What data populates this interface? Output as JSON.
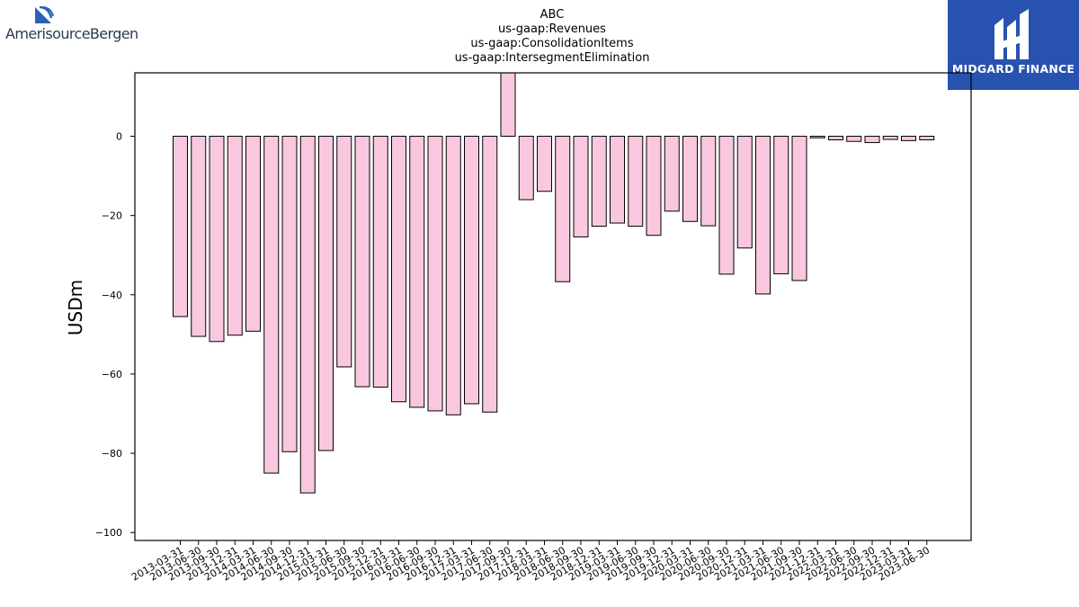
{
  "logos": {
    "left": {
      "text": "AmerisourceBergen",
      "icon": "amerisourcebergen-logo-icon"
    },
    "right": {
      "text": "MIDGARD FINANCE",
      "icon": "midgard-finance-logo-icon",
      "background": "#2752b0"
    }
  },
  "chart_data": {
    "type": "bar",
    "title": [
      "ABC",
      "us-gaap:Revenues",
      "us-gaap:ConsolidationItems",
      "us-gaap:IntersegmentElimination"
    ],
    "xlabel": "",
    "ylabel": "USDm",
    "ylim": [
      -102,
      16
    ],
    "yticks": [
      0,
      -20,
      -40,
      -60,
      -80,
      -100
    ],
    "ytick_labels": [
      "0",
      "−20",
      "−40",
      "−60",
      "−80",
      "−100"
    ],
    "bar_color": "#f9c8e0",
    "edge_color": "#000000",
    "grid": false,
    "categories": [
      "2013-03-31",
      "2013-06-30",
      "2013-09-30",
      "2013-12-31",
      "2014-03-31",
      "2014-06-30",
      "2014-09-30",
      "2014-12-31",
      "2015-03-31",
      "2015-06-30",
      "2015-09-30",
      "2015-12-31",
      "2016-03-31",
      "2016-06-30",
      "2016-09-30",
      "2016-12-31",
      "2017-03-31",
      "2017-06-30",
      "2017-09-30",
      "2017-12-31",
      "2018-03-31",
      "2018-06-30",
      "2018-09-30",
      "2018-12-31",
      "2019-03-31",
      "2019-06-30",
      "2019-09-30",
      "2019-12-31",
      "2020-03-31",
      "2020-06-30",
      "2020-09-30",
      "2020-12-31",
      "2021-03-31",
      "2021-06-30",
      "2021-09-30",
      "2021-12-31",
      "2022-03-31",
      "2022-06-30",
      "2022-09-30",
      "2022-12-31",
      "2023-03-31",
      "2023-06-30"
    ],
    "values": [
      -45.5,
      -50.5,
      -51.8,
      -50.2,
      -49.2,
      -85.0,
      -79.6,
      -90.0,
      -79.3,
      -58.2,
      -63.2,
      -63.3,
      -67.0,
      -68.4,
      -69.3,
      -70.3,
      -67.5,
      -69.6,
      17.0,
      -16.0,
      -13.9,
      -36.7,
      -25.4,
      -22.7,
      -21.9,
      -22.7,
      -25.0,
      -18.9,
      -21.5,
      -22.6,
      -34.8,
      -28.2,
      -39.8,
      -34.7,
      -36.4,
      -0.4,
      -0.9,
      -1.3,
      -1.6,
      -0.8,
      -1.1,
      -0.9
    ]
  }
}
